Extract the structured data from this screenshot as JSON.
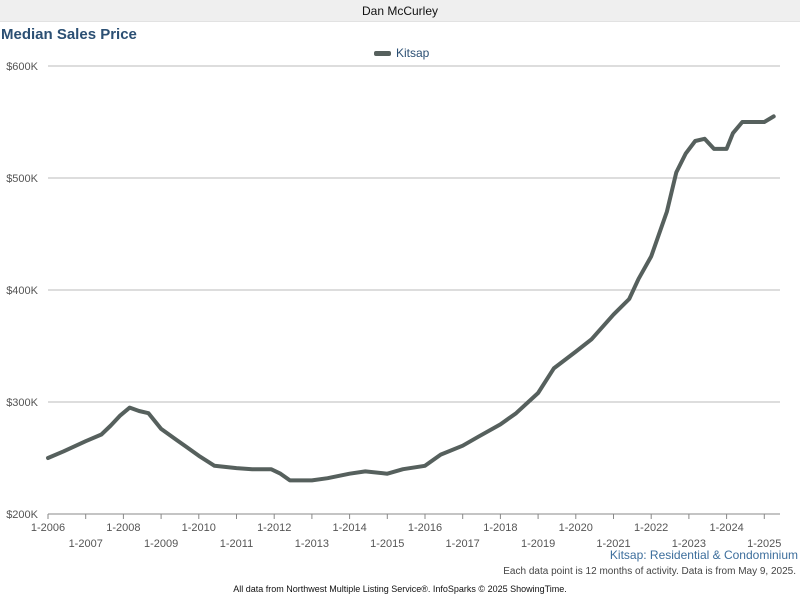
{
  "header": {
    "agent_name": "Dan McCurley"
  },
  "chart_data": {
    "type": "line",
    "title": "Median Sales Price",
    "subtitle": "Kitsap: Residential & Condominium",
    "ylim": [
      200000,
      600000
    ],
    "y_ticks": [
      {
        "value": 200000,
        "label": "$200K"
      },
      {
        "value": 300000,
        "label": "$300K"
      },
      {
        "value": 400000,
        "label": "$400K"
      },
      {
        "value": 500000,
        "label": "$500K"
      },
      {
        "value": 600000,
        "label": "$600K"
      }
    ],
    "xlim": [
      "2006-01",
      "2025-06"
    ],
    "x_ticks": [
      "1-2006",
      "1-2007",
      "1-2008",
      "1-2009",
      "1-2010",
      "1-2011",
      "1-2012",
      "1-2013",
      "1-2014",
      "1-2015",
      "1-2016",
      "1-2017",
      "1-2018",
      "1-2019",
      "1-2020",
      "1-2021",
      "1-2022",
      "1-2023",
      "1-2024",
      "1-2025"
    ],
    "grid": "horizontal",
    "legend_position": "top-center",
    "colors": {
      "line": "#56605d",
      "grid": "#bbbbbb",
      "title": "#2b4f73",
      "subtitle": "#3d6e9c"
    },
    "series": [
      {
        "name": "Kitsap",
        "x": [
          "2006-01",
          "2006-06",
          "2007-01",
          "2007-06",
          "2007-09",
          "2007-12",
          "2008-03",
          "2008-06",
          "2008-09",
          "2009-01",
          "2009-06",
          "2009-09",
          "2010-01",
          "2010-06",
          "2011-01",
          "2011-06",
          "2011-12",
          "2012-03",
          "2012-06",
          "2013-01",
          "2013-06",
          "2014-01",
          "2014-06",
          "2015-01",
          "2015-06",
          "2016-01",
          "2016-06",
          "2017-01",
          "2017-06",
          "2018-01",
          "2018-06",
          "2019-01",
          "2019-06",
          "2020-01",
          "2020-06",
          "2021-01",
          "2021-06",
          "2021-09",
          "2022-01",
          "2022-06",
          "2022-09",
          "2022-12",
          "2023-03",
          "2023-06",
          "2023-09",
          "2024-01",
          "2024-03",
          "2024-06",
          "2025-01",
          "2025-04"
        ],
        "values": [
          250000,
          256000,
          265000,
          271000,
          279000,
          288000,
          295000,
          292000,
          290000,
          276000,
          266000,
          260000,
          252000,
          243000,
          241000,
          240000,
          240000,
          236000,
          230000,
          230000,
          232000,
          236000,
          238000,
          236000,
          240000,
          243000,
          253000,
          261000,
          269000,
          280000,
          290000,
          308000,
          330000,
          345000,
          356000,
          378000,
          392000,
          410000,
          430000,
          470000,
          505000,
          522000,
          533000,
          535000,
          526000,
          526000,
          540000,
          550000,
          550000,
          555000
        ]
      }
    ],
    "notes": {
      "footnote": "Each data point is 12 months of activity. Data is from May 9, 2025.",
      "credit": "All data from Northwest Multiple Listing Service®. InfoSparks © 2025 ShowingTime."
    }
  }
}
